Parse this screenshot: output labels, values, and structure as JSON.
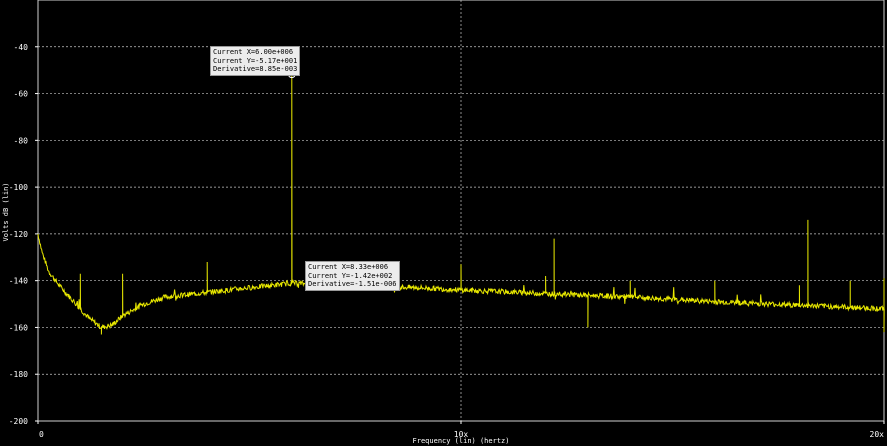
{
  "chart_data": {
    "type": "line",
    "xlabel": "Frequency (lin) (hertz)",
    "ylabel": "Volts dB (lin)",
    "x_ticks": [
      "0",
      "10x",
      "20x"
    ],
    "xlim": [
      0,
      20
    ],
    "ylim": [
      -200,
      -20
    ],
    "y_ticks": [
      -40,
      -60,
      -80,
      -100,
      -120,
      -140,
      -160,
      -180,
      -200
    ],
    "grid": true,
    "series": [
      {
        "color": "#e8e800",
        "baseline": [
          {
            "x": 0.0,
            "y": -120
          },
          {
            "x": 0.1,
            "y": -128
          },
          {
            "x": 0.25,
            "y": -136
          },
          {
            "x": 0.5,
            "y": -142
          },
          {
            "x": 0.8,
            "y": -148
          },
          {
            "x": 1.2,
            "y": -156
          },
          {
            "x": 1.5,
            "y": -160
          },
          {
            "x": 1.75,
            "y": -159
          },
          {
            "x": 2.0,
            "y": -155
          },
          {
            "x": 2.5,
            "y": -150
          },
          {
            "x": 3.0,
            "y": -147
          },
          {
            "x": 4.0,
            "y": -145
          },
          {
            "x": 5.0,
            "y": -143
          },
          {
            "x": 5.8,
            "y": -141.5
          },
          {
            "x": 6.0,
            "y": -141
          },
          {
            "x": 7.0,
            "y": -142
          },
          {
            "x": 8.0,
            "y": -142.5
          },
          {
            "x": 9.0,
            "y": -143
          },
          {
            "x": 10.0,
            "y": -144
          },
          {
            "x": 12.0,
            "y": -145.5
          },
          {
            "x": 14.0,
            "y": -147
          },
          {
            "x": 16.0,
            "y": -149
          },
          {
            "x": 18.0,
            "y": -150.5
          },
          {
            "x": 20.0,
            "y": -152
          }
        ],
        "spikes": [
          {
            "x": 1.0,
            "y": -137
          },
          {
            "x": 2.0,
            "y": -137
          },
          {
            "x": 4.0,
            "y": -132
          },
          {
            "x": 6.0,
            "y": -51.7
          },
          {
            "x": 8.0,
            "y": -141
          },
          {
            "x": 10.0,
            "y": -133
          },
          {
            "x": 12.0,
            "y": -138
          },
          {
            "x": 12.2,
            "y": -122
          },
          {
            "x": 14.0,
            "y": -140
          },
          {
            "x": 16.0,
            "y": -140
          },
          {
            "x": 18.0,
            "y": -142
          },
          {
            "x": 18.2,
            "y": -114
          },
          {
            "x": 19.2,
            "y": -140
          },
          {
            "x": 20.0,
            "y": -139
          }
        ],
        "dips": [
          {
            "x": 1.5,
            "y": -163
          },
          {
            "x": 13.0,
            "y": -160
          },
          {
            "x": 20.0,
            "y": -162
          }
        ]
      }
    ],
    "annotations": [
      {
        "x": 6.0,
        "y": -51.7,
        "lines": [
          "Current X=6.00e+006",
          "Current Y=-5.17e+001",
          "Derivative=8.85e-003"
        ]
      },
      {
        "x": 8.33,
        "y": -142,
        "lines": [
          "Current X=8.33e+006",
          "Current Y=-1.42e+002",
          "Derivative=-1.51e-006"
        ]
      }
    ]
  }
}
